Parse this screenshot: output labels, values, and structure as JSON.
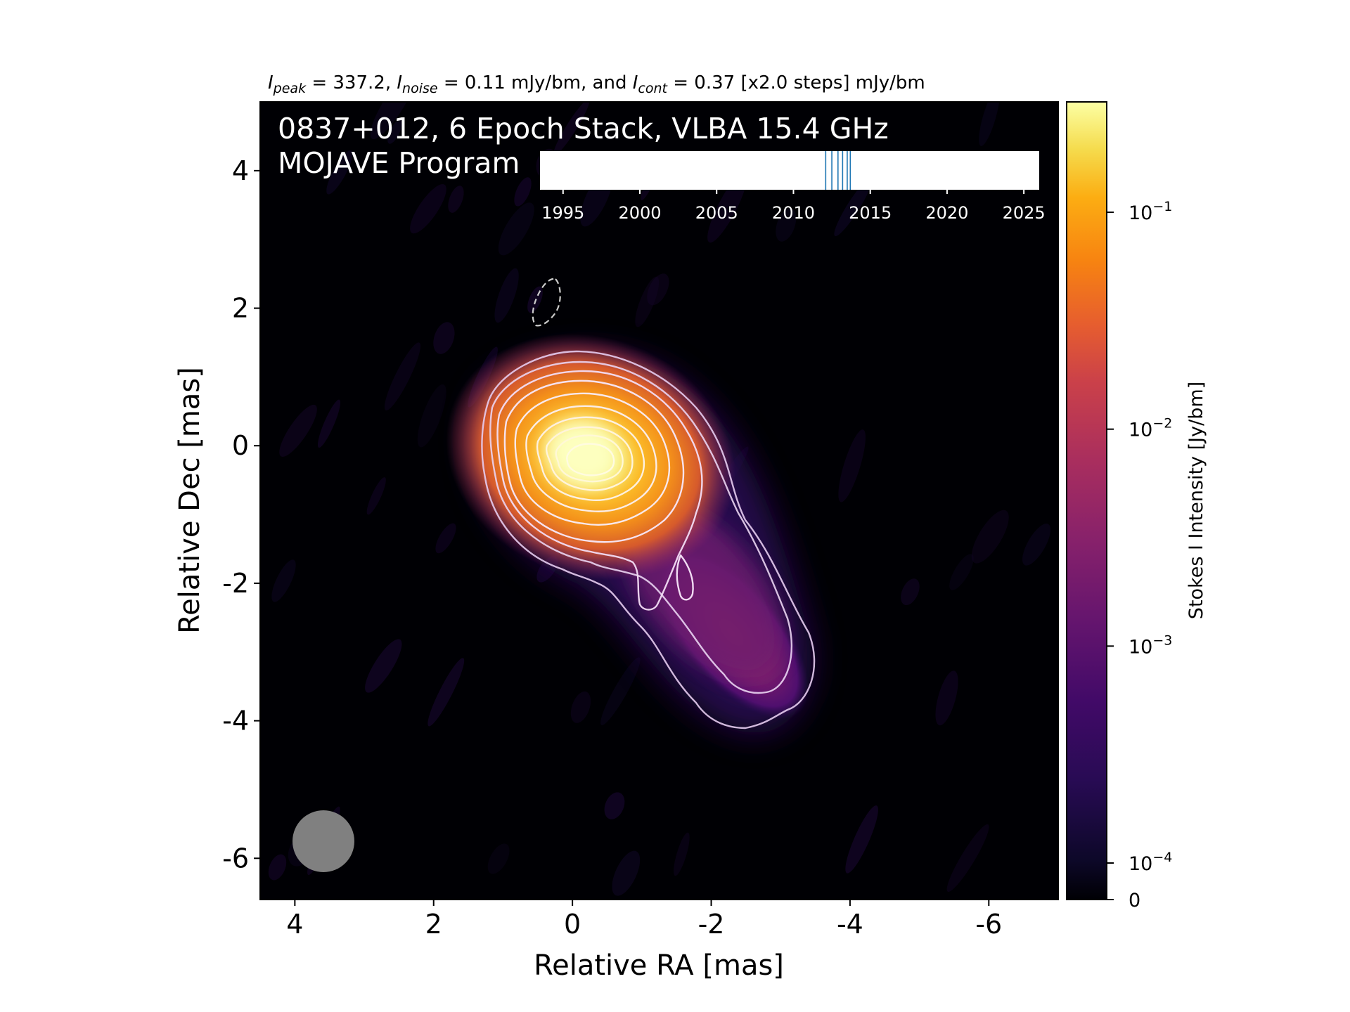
{
  "chart_data": {
    "type": "heatmap",
    "top_caption": {
      "i_peak_sub": "peak",
      "i_peak_val": " = 337.2, ",
      "i_noise_sub": "noise",
      "i_noise_val": " = 0.11 mJy/bm, and ",
      "i_cont_sub": "cont",
      "i_cont_val": " = 0.37 [x2.0 steps] mJy/bm"
    },
    "title_line1": "0837+012, 6 Epoch Stack, VLBA 15.4 GHz",
    "title_line2": "MOJAVE Program",
    "xlabel": "Relative RA [mas]",
    "ylabel": "Relative Dec [mas]",
    "xlim": [
      4.5,
      -7.0
    ],
    "ylim": [
      -6.6,
      5.0
    ],
    "x_ticks": [
      4,
      2,
      0,
      -2,
      -4,
      -6
    ],
    "x_tick_labels": [
      "4",
      "2",
      "0",
      "-2",
      "-4",
      "-6"
    ],
    "y_ticks": [
      4,
      2,
      0,
      -2,
      -4,
      -6
    ],
    "y_tick_labels": [
      "4",
      "2",
      "0",
      "-2",
      "-4",
      "-6"
    ],
    "colormap": "inferno",
    "colorbar": {
      "label": "Stokes I Intensity [Jy/bm]",
      "scale": "log",
      "ticks": [
        0.1,
        0.01,
        0.001,
        0.0001,
        0
      ],
      "tick_bases": [
        "10",
        "10",
        "10",
        "10",
        "0"
      ],
      "tick_exps": [
        "−1",
        "−2",
        "−3",
        "−4",
        ""
      ]
    },
    "epoch_timeline": {
      "xlim": [
        1993.5,
        2026.0
      ],
      "ticks": [
        1995,
        2000,
        2005,
        2010,
        2015,
        2020,
        2025
      ],
      "tick_labels": [
        "1995",
        "2000",
        "2005",
        "2010",
        "2015",
        "2020",
        "2025"
      ],
      "epochs": [
        2012.1,
        2012.5,
        2012.9,
        2013.2,
        2013.5,
        2013.7
      ],
      "epoch_color": "#1f77b4"
    },
    "beam": {
      "major_mas": 0.9,
      "minor_mas": 0.9,
      "position_ra_mas": 3.6,
      "position_dec_mas": -5.7,
      "color": "#808080"
    },
    "core_position": {
      "ra_mas": -0.1,
      "dec_mas": -0.1
    },
    "contour_levels_mJy": [
      0.37,
      0.74,
      1.48,
      2.96,
      5.92,
      11.84,
      23.68,
      47.36,
      94.72,
      189.44
    ],
    "negative_contour_level_mJy": -0.37
  }
}
